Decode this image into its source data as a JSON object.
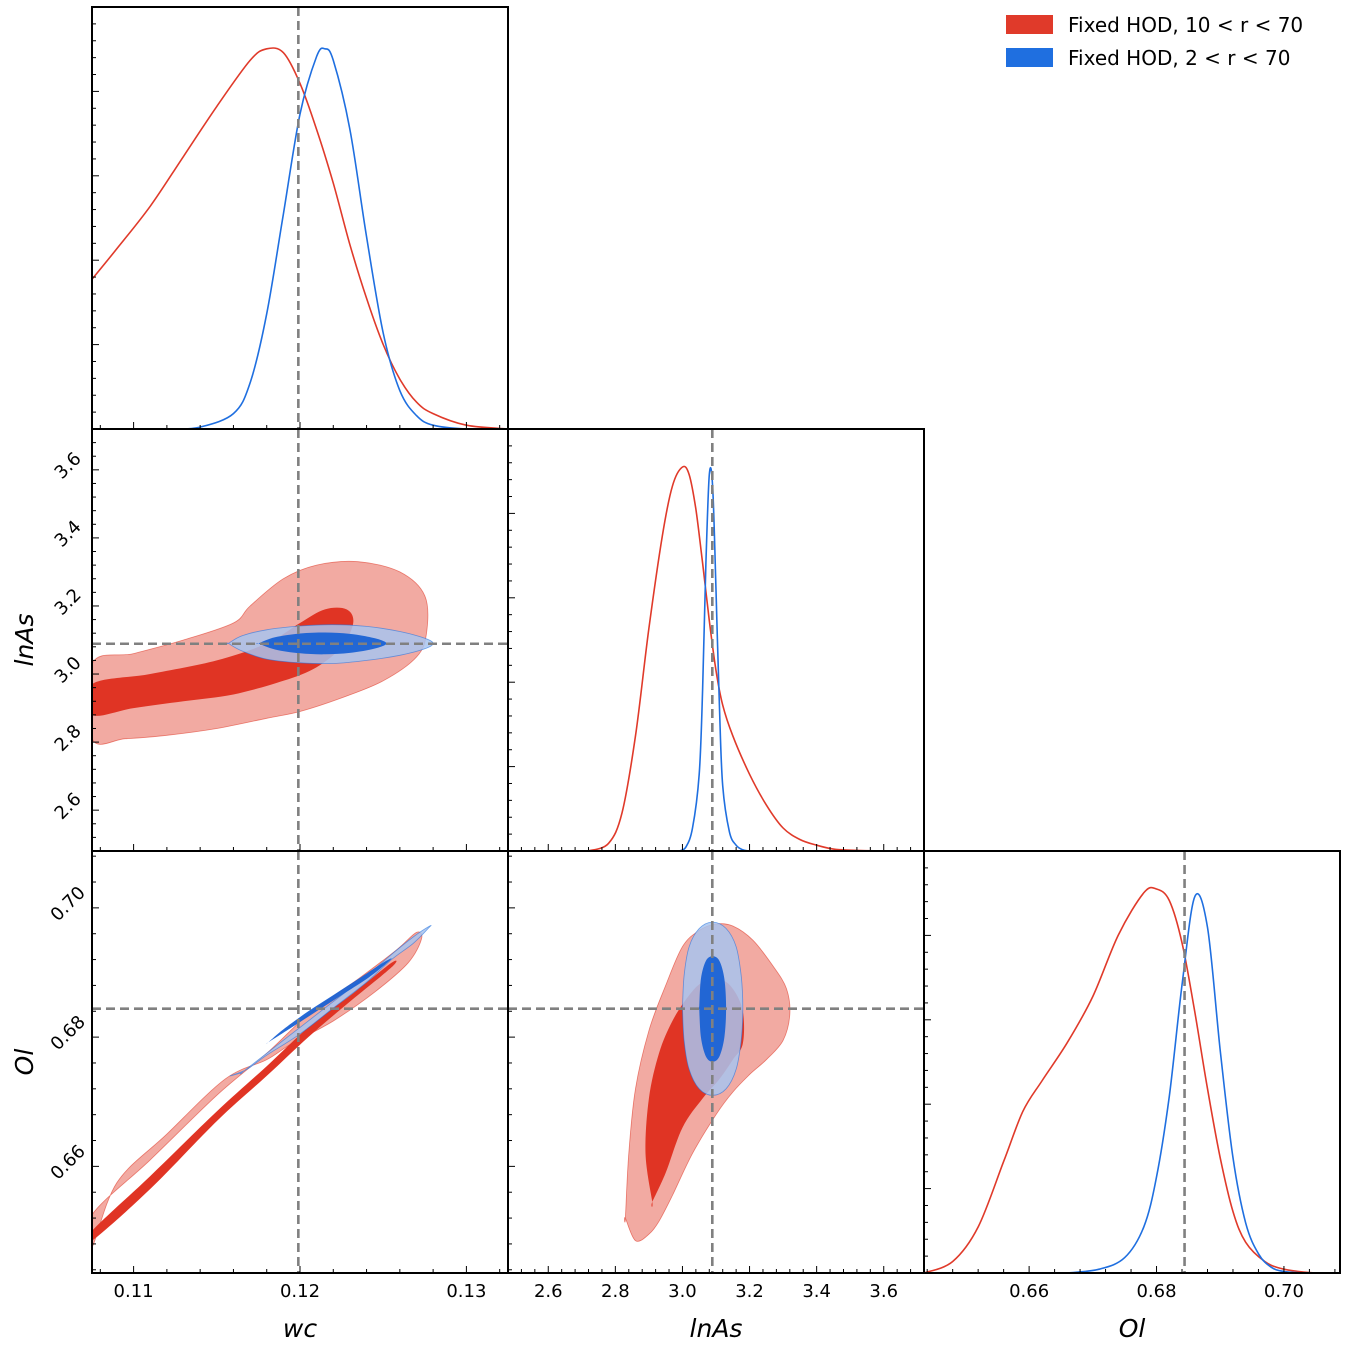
{
  "chart_data": {
    "type": "triangle",
    "parameters": [
      "wc",
      "lnAs",
      "Ol"
    ],
    "axis_labels": {
      "wc": "wc",
      "lnAs": "lnAs",
      "Ol": "Ol"
    },
    "ranges": {
      "wc": [
        0.1075,
        0.1325
      ],
      "lnAs": [
        2.48,
        3.72
      ],
      "Ol": [
        0.6435,
        0.7088
      ]
    },
    "ticks": {
      "wc": [
        "0.11",
        "0.12",
        "0.13"
      ],
      "lnAs": [
        "2.6",
        "2.8",
        "3.0",
        "3.2",
        "3.4",
        "3.6"
      ],
      "Ol": [
        "0.66",
        "0.68",
        "0.70"
      ]
    },
    "fiducial": {
      "wc": 0.1199,
      "lnAs": 3.089,
      "Ol": 0.6844
    },
    "colors": {
      "fiducial_line": "#808080"
    },
    "series": [
      {
        "name": "Fixed HOD, 10 < r < 70",
        "color": "#e03a2a",
        "fill_inner": "#e03424",
        "fill_outer": "#f2aaa2",
        "marginals": {
          "wc": {
            "x": [
              0.1075,
              0.109,
              0.111,
              0.113,
              0.115,
              0.117,
              0.118,
              0.119,
              0.12,
              0.121,
              0.122,
              0.123,
              0.124,
              0.125,
              0.126,
              0.127,
              0.128,
              0.13,
              0.1325
            ],
            "y": [
              0.39,
              0.47,
              0.58,
              0.71,
              0.84,
              0.96,
              0.99,
              0.98,
              0.9,
              0.78,
              0.64,
              0.48,
              0.34,
              0.22,
              0.13,
              0.07,
              0.04,
              0.01,
              0.0
            ]
          },
          "lnAs": {
            "x": [
              2.72,
              2.78,
              2.82,
              2.86,
              2.9,
              2.94,
              2.97,
              3.0,
              3.02,
              3.04,
              3.06,
              3.08,
              3.1,
              3.12,
              3.15,
              3.2,
              3.25,
              3.3,
              3.35,
              3.4,
              3.45,
              3.5,
              3.6,
              3.72
            ],
            "y": [
              0.0,
              0.02,
              0.1,
              0.3,
              0.58,
              0.82,
              0.95,
              1.0,
              0.98,
              0.89,
              0.75,
              0.6,
              0.47,
              0.38,
              0.3,
              0.2,
              0.12,
              0.06,
              0.03,
              0.015,
              0.005,
              0.002,
              0.0,
              0.0
            ]
          },
          "Ol": {
            "x": [
              0.6435,
              0.648,
              0.652,
              0.656,
              0.659,
              0.662,
              0.666,
              0.67,
              0.674,
              0.678,
              0.68,
              0.682,
              0.684,
              0.686,
              0.688,
              0.69,
              0.692,
              0.694,
              0.697,
              0.7,
              0.705,
              0.7088
            ],
            "y": [
              0.0,
              0.03,
              0.12,
              0.29,
              0.42,
              0.5,
              0.6,
              0.72,
              0.88,
              0.99,
              1.0,
              0.97,
              0.86,
              0.68,
              0.48,
              0.3,
              0.16,
              0.08,
              0.03,
              0.01,
              0.0,
              0.0
            ]
          }
        },
        "contours": {
          "wc_lnAs": {
            "inner": {
              "wc": [
                0.1075,
                0.111,
                0.115,
                0.118,
                0.12,
                0.1215,
                0.1228,
                0.1232,
                0.1225,
                0.121,
                0.119,
                0.116,
                0.113,
                0.11,
                0.1075
              ],
              "lnAs": [
                2.97,
                3.0,
                3.04,
                3.09,
                3.15,
                3.19,
                3.19,
                3.15,
                3.08,
                3.02,
                2.98,
                2.94,
                2.92,
                2.9,
                2.88
              ]
            },
            "outer": {
              "wc": [
                0.1075,
                0.11,
                0.113,
                0.116,
                0.117,
                0.119,
                0.121,
                0.1235,
                0.126,
                0.1275,
                0.1276,
                0.127,
                0.125,
                0.1225,
                0.12,
                0.118,
                0.115,
                0.112,
                0.1095,
                0.1075
              ],
              "lnAs": [
                3.03,
                3.06,
                3.1,
                3.15,
                3.2,
                3.28,
                3.32,
                3.33,
                3.3,
                3.23,
                3.12,
                3.05,
                2.98,
                2.93,
                2.89,
                2.87,
                2.84,
                2.82,
                2.81,
                2.81
              ]
            }
          },
          "wc_Ol": {
            "inner": {
              "wc": [
                0.1075,
                0.111,
                0.115,
                0.118,
                0.1205,
                0.1232,
                0.1255,
                0.1255,
                0.123,
                0.1205,
                0.118,
                0.115,
                0.111,
                0.1075
              ],
              "Ol": [
                0.65,
                0.6585,
                0.6685,
                0.6755,
                0.6815,
                0.6868,
                0.6915,
                0.6908,
                0.6855,
                0.68,
                0.674,
                0.667,
                0.6565,
                0.6485
              ]
            },
            "outer": {
              "wc": [
                0.1075,
                0.111,
                0.115,
                0.118,
                0.1205,
                0.1235,
                0.1258,
                0.127,
                0.1273,
                0.1265,
                0.1245,
                0.122,
                0.1195,
                0.118,
                0.1155,
                0.112,
                0.109,
                0.1075
              ],
              "Ol": [
                0.6525,
                0.661,
                0.671,
                0.6775,
                0.6835,
                0.689,
                0.6935,
                0.6962,
                0.6952,
                0.6915,
                0.687,
                0.6825,
                0.679,
                0.6765,
                0.6735,
                0.665,
                0.6575,
                0.6475
              ]
            }
          },
          "lnAs_Ol": {
            "inner": {
              "lnAs": [
                2.91,
                2.89,
                2.9,
                2.93,
                2.97,
                3.02,
                3.06,
                3.11,
                3.15,
                3.18,
                3.18,
                3.15,
                3.11,
                3.06,
                3.0,
                2.95,
                2.91
              ],
              "Ol": [
                0.6545,
                0.662,
                0.6705,
                0.6775,
                0.6825,
                0.6865,
                0.6885,
                0.689,
                0.6875,
                0.684,
                0.679,
                0.6765,
                0.6735,
                0.6705,
                0.666,
                0.659,
                0.6545
              ]
            },
            "outer": {
              "lnAs": [
                2.83,
                2.84,
                2.86,
                2.9,
                2.95,
                3.0,
                3.05,
                3.1,
                3.15,
                3.21,
                3.27,
                3.31,
                3.32,
                3.3,
                3.25,
                3.2,
                3.15,
                3.1,
                3.03,
                2.97,
                2.93,
                2.9,
                2.86,
                2.83
              ],
              "Ol": [
                0.652,
                0.662,
                0.672,
                0.681,
                0.688,
                0.694,
                0.6965,
                0.6975,
                0.6972,
                0.695,
                0.691,
                0.6875,
                0.6835,
                0.6795,
                0.6765,
                0.6742,
                0.6715,
                0.668,
                0.662,
                0.6555,
                0.6515,
                0.6495,
                0.6485,
                0.652
              ]
            }
          }
        }
      },
      {
        "name": "Fixed HOD, 2 < r < 70",
        "color": "#1f6fe0",
        "fill_inner": "#1a62d4",
        "fill_outer": "#a8c4ee",
        "marginals": {
          "wc": {
            "x": [
              0.1125,
              0.114,
              0.116,
              0.117,
              0.118,
              0.119,
              0.12,
              0.121,
              0.1215,
              0.122,
              0.123,
              0.124,
              0.125,
              0.126,
              0.127,
              0.128,
              0.13,
              0.1325
            ],
            "y": [
              0.0,
              0.005,
              0.04,
              0.12,
              0.3,
              0.56,
              0.82,
              0.97,
              0.99,
              0.96,
              0.78,
              0.5,
              0.25,
              0.1,
              0.035,
              0.01,
              0.0,
              0.0
            ]
          },
          "lnAs": {
            "x": [
              2.99,
              3.01,
              3.03,
              3.05,
              3.06,
              3.07,
              3.08,
              3.09,
              3.1,
              3.11,
              3.12,
              3.14,
              3.16,
              3.18,
              3.2
            ],
            "y": [
              0.0,
              0.01,
              0.06,
              0.2,
              0.42,
              0.75,
              0.98,
              0.95,
              0.68,
              0.38,
              0.17,
              0.05,
              0.015,
              0.003,
              0.0
            ]
          },
          "Ol": {
            "x": [
              0.666,
              0.671,
              0.675,
              0.678,
              0.68,
              0.682,
              0.684,
              0.686,
              0.688,
              0.69,
              0.692,
              0.694,
              0.696,
              0.698,
              0.7,
              0.703
            ],
            "y": [
              0.0,
              0.01,
              0.04,
              0.12,
              0.25,
              0.46,
              0.75,
              0.98,
              0.9,
              0.58,
              0.3,
              0.13,
              0.05,
              0.015,
              0.004,
              0.0
            ]
          }
        },
        "contours": {
          "wc_lnAs": {
            "inner": {
              "wc": [
                0.1175,
                0.1185,
                0.12,
                0.1215,
                0.123,
                0.1245,
                0.1252,
                0.1245,
                0.123,
                0.1215,
                0.12,
                0.1185,
                0.1175
              ],
              "lnAs": [
                3.09,
                3.108,
                3.119,
                3.122,
                3.118,
                3.105,
                3.09,
                3.075,
                3.062,
                3.058,
                3.061,
                3.072,
                3.09
              ]
            },
            "outer": {
              "wc": [
                0.1157,
                0.1165,
                0.118,
                0.12,
                0.122,
                0.124,
                0.126,
                0.1275,
                0.128,
                0.1275,
                0.126,
                0.124,
                0.122,
                0.12,
                0.118,
                0.1165,
                0.1157
              ],
              "lnAs": [
                3.09,
                3.112,
                3.13,
                3.141,
                3.145,
                3.14,
                3.125,
                3.105,
                3.09,
                3.074,
                3.055,
                3.04,
                3.031,
                3.033,
                3.044,
                3.068,
                3.09
              ]
            }
          },
          "wc_Ol": {
            "inner": {
              "wc": [
                0.1181,
                0.1195,
                0.121,
                0.1225,
                0.124,
                0.1251,
                0.1255,
                0.1248,
                0.1235,
                0.122,
                0.1205,
                0.119,
                0.1181
              ],
              "Ol": [
                0.6792,
                0.6815,
                0.684,
                0.6865,
                0.689,
                0.6912,
                0.6922,
                0.6912,
                0.689,
                0.6865,
                0.684,
                0.6812,
                0.6792
              ]
            },
            "outer": {
              "wc": [
                0.1165,
                0.118,
                0.12,
                0.122,
                0.124,
                0.1255,
                0.1268,
                0.1278,
                0.1277,
                0.1268,
                0.1255,
                0.124,
                0.122,
                0.12,
                0.118,
                0.1168,
                0.1158,
                0.1165
              ],
              "Ol": [
                0.6745,
                0.6775,
                0.6815,
                0.6855,
                0.6895,
                0.6928,
                0.6955,
                0.6972,
                0.6968,
                0.6945,
                0.692,
                0.6885,
                0.6845,
                0.6805,
                0.6772,
                0.675,
                0.674,
                0.6745
              ]
            }
          },
          "lnAs_Ol": {
            "inner": {
              "lnAs": [
                3.05,
                3.055,
                3.07,
                3.09,
                3.11,
                3.125,
                3.13,
                3.125,
                3.11,
                3.09,
                3.07,
                3.055,
                3.05
              ],
              "Ol": [
                0.6845,
                0.689,
                0.6918,
                0.6925,
                0.6918,
                0.689,
                0.6845,
                0.68,
                0.677,
                0.6762,
                0.677,
                0.68,
                0.6845
              ]
            },
            "outer": {
              "lnAs": [
                3.0,
                3.005,
                3.02,
                3.05,
                3.09,
                3.13,
                3.16,
                3.175,
                3.18,
                3.175,
                3.16,
                3.13,
                3.09,
                3.05,
                3.02,
                3.005,
                3.0
              ],
              "Ol": [
                0.6845,
                0.6895,
                0.694,
                0.6968,
                0.6978,
                0.6968,
                0.694,
                0.6895,
                0.6845,
                0.6795,
                0.675,
                0.672,
                0.671,
                0.672,
                0.675,
                0.6795,
                0.6845
              ]
            }
          }
        }
      }
    ],
    "legend_position": "top-right",
    "grid": false
  }
}
